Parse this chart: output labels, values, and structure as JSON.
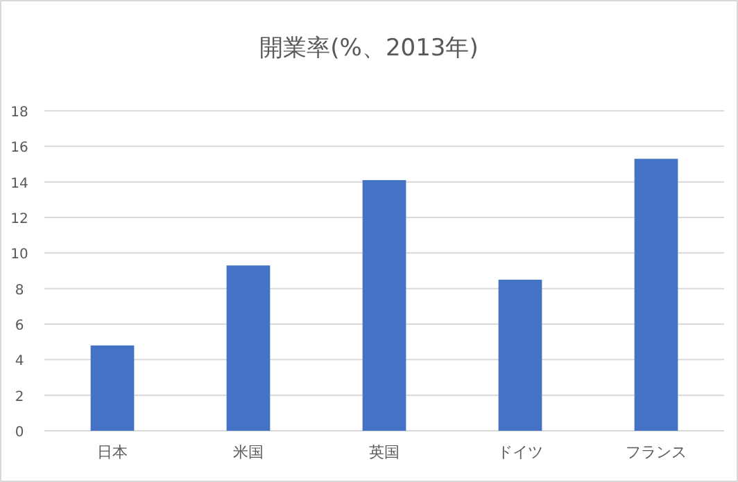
{
  "chart_data": {
    "type": "bar",
    "title": "開業率(%、2013年)",
    "categories": [
      "日本",
      "米国",
      "英国",
      "ドイツ",
      "フランス"
    ],
    "values": [
      4.8,
      9.3,
      14.1,
      8.5,
      15.3
    ],
    "color": "#4472c4",
    "ylim": [
      0,
      18
    ],
    "yticks": [
      0,
      2,
      4,
      6,
      8,
      10,
      12,
      14,
      16,
      18
    ],
    "grid": "y"
  }
}
